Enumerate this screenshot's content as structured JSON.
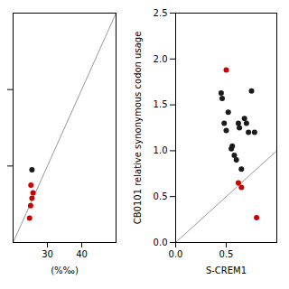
{
  "chart_data": [
    {
      "type": "scatter",
      "xlabel": "(%‰)",
      "xlim": [
        20,
        50
      ],
      "ylim": [
        20,
        50
      ],
      "xticks": [
        30,
        40
      ],
      "yticks": [
        30,
        40
      ],
      "tick_labels": "x",
      "grid": false,
      "series": [
        {
          "type": "line",
          "color": "#999999",
          "x": [
            20,
            50
          ],
          "values": [
            20,
            50
          ]
        },
        {
          "type": "scatter",
          "color": "#1a1a1a",
          "x": [
            25.5
          ],
          "values": [
            29.5
          ]
        },
        {
          "type": "scatter",
          "color": "#cc0000",
          "x": [
            25.2,
            25.8,
            25.5,
            25.1,
            24.8
          ],
          "values": [
            27.5,
            26.5,
            25.8,
            24.8,
            23.2
          ]
        }
      ]
    },
    {
      "type": "scatter",
      "xlabel": "S-CREM1",
      "ylabel": "CB0101 relative synonymous codon usage",
      "xlim": [
        0,
        1.0
      ],
      "ylim": [
        0,
        2.5
      ],
      "xticks": [
        {
          "value": 0,
          "label": "0.0"
        },
        0.5
      ],
      "yticks": [
        {
          "value": 0,
          "label": "0.0"
        },
        0.5,
        {
          "value": 1.0,
          "label": "1.0"
        },
        1.5,
        {
          "value": 2.0,
          "label": "2.0"
        },
        2.5
      ],
      "grid": false,
      "series": [
        {
          "type": "line",
          "color": "#999999",
          "x": [
            0,
            1.0
          ],
          "values": [
            0,
            1.0
          ]
        },
        {
          "type": "scatter",
          "color": "#1a1a1a",
          "x": [
            0.45,
            0.46,
            0.48,
            0.5,
            0.52,
            0.55,
            0.56,
            0.58,
            0.6,
            0.62,
            0.63,
            0.65,
            0.68,
            0.7,
            0.72,
            0.75,
            0.78
          ],
          "values": [
            1.63,
            1.57,
            1.3,
            1.22,
            1.42,
            1.02,
            1.05,
            0.95,
            0.9,
            1.3,
            1.25,
            0.8,
            1.35,
            1.3,
            1.2,
            1.65,
            1.2
          ]
        },
        {
          "type": "scatter",
          "color": "#cc0000",
          "x": [
            0.5,
            0.62,
            0.65,
            0.8
          ],
          "values": [
            1.88,
            0.65,
            0.6,
            0.27
          ]
        }
      ]
    }
  ]
}
